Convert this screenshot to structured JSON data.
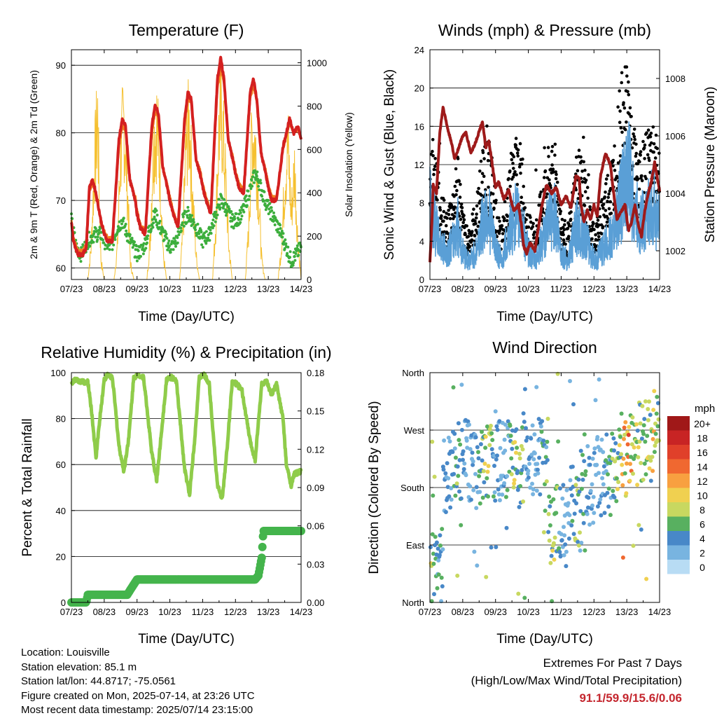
{
  "colors": {
    "temp2m": "#d42020",
    "temp9m": "#f08020",
    "dewpoint": "#3cae3c",
    "solar": "#f5c030",
    "sonic_wind": "#5a9fd6",
    "gust": "#000000",
    "pressure": "#9e1a1a",
    "rh": "#8fcc4a",
    "precip": "#44b44c",
    "extremes": "#c4262e"
  },
  "chart_data": [
    {
      "id": "temperature",
      "type": "line",
      "title": "Temperature (F)",
      "xlabel": "Time (Day/UTC)",
      "ylabel": "2m & 9m T (Red, Orange) & 2m Td (Green)",
      "y2label": "Solar Insolation (Yellow)",
      "x_ticks": [
        "07/23",
        "08/23",
        "09/23",
        "10/23",
        "11/23",
        "12/23",
        "13/23",
        "14/23"
      ],
      "xlim": [
        0,
        7
      ],
      "ylim": [
        58.3,
        92.3
      ],
      "y_ticks": [
        60,
        70,
        80,
        90
      ],
      "y2lim": [
        0,
        1060
      ],
      "y2_ticks": [
        0,
        200,
        400,
        600,
        800,
        1000
      ],
      "grid": true,
      "series": [
        {
          "key": "t2m",
          "axis": "left",
          "x": [
            0.0,
            0.06,
            0.2,
            0.35,
            0.45,
            0.55,
            0.65,
            0.75,
            0.9,
            1.0,
            1.1,
            1.25,
            1.45,
            1.55,
            1.65,
            1.78,
            1.95,
            2.0,
            2.1,
            2.25,
            2.45,
            2.55,
            2.65,
            2.78,
            2.92,
            3.0,
            3.1,
            3.25,
            3.45,
            3.55,
            3.65,
            3.8,
            3.92,
            4.0,
            4.1,
            4.25,
            4.45,
            4.55,
            4.65,
            4.78,
            4.92,
            5.0,
            5.1,
            5.25,
            5.45,
            5.55,
            5.65,
            5.78,
            5.92,
            6.0,
            6.1,
            6.25,
            6.45,
            6.55,
            6.65,
            6.78,
            6.9,
            7.0
          ],
          "values": [
            67,
            64,
            62,
            62,
            63,
            72,
            73,
            71,
            67,
            65,
            64,
            64,
            79,
            82,
            81,
            73,
            70,
            68,
            66,
            65,
            81,
            84,
            83,
            75,
            72,
            70,
            68,
            66,
            82,
            86,
            85,
            76,
            74,
            72,
            70,
            68,
            88,
            91,
            88,
            79,
            76,
            74,
            72,
            71,
            86,
            88,
            85,
            77,
            74,
            72,
            70,
            70,
            78,
            80,
            82,
            80,
            81,
            79
          ]
        },
        {
          "key": "t9m",
          "axis": "left",
          "x": [
            0.0,
            0.06,
            0.2,
            0.35,
            0.45,
            0.55,
            0.65,
            0.75,
            0.9,
            1.0,
            1.1,
            1.25,
            1.45,
            1.55,
            1.65,
            1.78,
            1.95,
            2.0,
            2.1,
            2.25,
            2.45,
            2.55,
            2.65,
            2.78,
            2.92,
            3.0,
            3.1,
            3.25,
            3.45,
            3.55,
            3.65,
            3.8,
            3.92,
            4.0,
            4.1,
            4.25,
            4.45,
            4.55,
            4.65,
            4.78,
            4.92,
            5.0,
            5.1,
            5.25,
            5.45,
            5.55,
            5.65,
            5.78,
            5.92,
            6.0,
            6.1,
            6.25,
            6.45,
            6.55,
            6.65,
            6.78,
            6.9,
            7.0
          ],
          "values": [
            67,
            64.5,
            62.5,
            62.5,
            63.5,
            71.5,
            72.5,
            71,
            67,
            65.5,
            64.5,
            64.5,
            78,
            81,
            80.5,
            73,
            70.5,
            68.5,
            66.5,
            65.5,
            80,
            83,
            82.5,
            75,
            72.5,
            70.5,
            68.5,
            66.5,
            81,
            85,
            84.5,
            76,
            74.5,
            72.5,
            70.5,
            68.5,
            86.5,
            89.5,
            87.5,
            79,
            76.5,
            74.5,
            72.5,
            71.5,
            85,
            87,
            84.5,
            77,
            74.5,
            72.5,
            70.5,
            70.5,
            77.5,
            79.5,
            81.5,
            80,
            80.5,
            79
          ]
        },
        {
          "key": "td2m",
          "axis": "left",
          "x": [
            0.0,
            0.15,
            0.3,
            0.5,
            0.7,
            0.9,
            1.0,
            1.2,
            1.4,
            1.55,
            1.7,
            1.9,
            2.0,
            2.2,
            2.4,
            2.55,
            2.7,
            2.9,
            3.0,
            3.2,
            3.4,
            3.55,
            3.7,
            3.9,
            4.0,
            4.2,
            4.4,
            4.55,
            4.7,
            4.9,
            5.0,
            5.2,
            5.4,
            5.6,
            5.7,
            5.9,
            6.0,
            6.2,
            6.4,
            6.55,
            6.7,
            6.85,
            7.0
          ],
          "values": [
            67,
            63,
            62,
            64,
            65,
            65,
            64,
            63,
            66,
            67,
            65,
            63,
            62,
            63,
            66,
            68,
            66,
            64,
            63,
            64,
            67,
            68,
            67,
            65,
            64,
            65,
            68,
            70,
            69,
            67,
            67,
            68,
            71,
            74,
            73,
            70,
            69,
            67,
            65,
            63,
            61,
            62,
            63
          ]
        },
        {
          "key": "solar",
          "axis": "right",
          "x": [
            0.0,
            0.5,
            0.6,
            0.7,
            0.8,
            0.85,
            0.9,
            1.0,
            1.1,
            1.3,
            1.4,
            1.5,
            1.6,
            1.7,
            1.8,
            1.9,
            2.0,
            2.1,
            2.3,
            2.4,
            2.5,
            2.6,
            2.7,
            2.8,
            2.9,
            3.0,
            3.1,
            3.3,
            3.4,
            3.5,
            3.6,
            3.7,
            3.8,
            3.9,
            4.0,
            4.1,
            4.3,
            4.4,
            4.5,
            4.6,
            4.7,
            4.8,
            4.9,
            5.0,
            5.1,
            5.3,
            5.4,
            5.5,
            5.6,
            5.7,
            5.8,
            5.9,
            6.0,
            6.1,
            6.3,
            6.4,
            6.5,
            6.6,
            6.7,
            6.8,
            6.9,
            7.0
          ],
          "values": [
            0,
            0,
            200,
            700,
            1020,
            500,
            120,
            0,
            0,
            0,
            200,
            800,
            1000,
            600,
            100,
            0,
            0,
            0,
            0,
            250,
            850,
            980,
            700,
            150,
            0,
            0,
            0,
            0,
            300,
            880,
            960,
            500,
            150,
            0,
            0,
            0,
            0,
            350,
            950,
            990,
            620,
            200,
            0,
            0,
            0,
            0,
            300,
            900,
            870,
            550,
            120,
            0,
            0,
            0,
            0,
            200,
            600,
            850,
            400,
            700,
            250,
            0
          ]
        }
      ]
    },
    {
      "id": "winds",
      "type": "scatter",
      "title": "Winds (mph) & Pressure (mb)",
      "xlabel": "Time (Day/UTC)",
      "ylabel": "Sonic Wind & Gust (Blue, Black)",
      "y2label": "Station Pressure (Maroon)",
      "x_ticks": [
        "07/23",
        "08/23",
        "09/23",
        "10/23",
        "11/23",
        "12/23",
        "13/23",
        "14/23"
      ],
      "xlim": [
        0,
        7
      ],
      "ylim": [
        0,
        24
      ],
      "y_ticks": [
        0,
        4,
        8,
        12,
        16,
        20,
        24
      ],
      "y2lim": [
        1001.0,
        1009.0
      ],
      "y2_ticks": [
        1002,
        1004,
        1006,
        1008
      ],
      "grid": true,
      "series": [
        {
          "key": "wind",
          "axis": "left",
          "x": [
            0.0,
            0.15,
            0.3,
            0.5,
            0.7,
            0.85,
            1.0,
            1.2,
            1.4,
            1.6,
            1.75,
            1.9,
            2.05,
            2.2,
            2.4,
            2.6,
            2.8,
            3.0,
            3.2,
            3.4,
            3.6,
            3.8,
            4.0,
            4.2,
            4.35,
            4.5,
            4.7,
            4.9,
            5.05,
            5.2,
            5.4,
            5.6,
            5.75,
            5.9,
            6.05,
            6.2,
            6.4,
            6.6,
            6.8,
            7.0
          ],
          "values": [
            8,
            6,
            4,
            3,
            4,
            6,
            3,
            2,
            3,
            6,
            8,
            5,
            3,
            2,
            5,
            7,
            6,
            3,
            2,
            4,
            6,
            7,
            3,
            2,
            4,
            6,
            5,
            3,
            2,
            3,
            4,
            5,
            8,
            10,
            12,
            8,
            6,
            7,
            8,
            6
          ]
        },
        {
          "key": "gust",
          "axis": "left",
          "x": [
            0.0,
            0.15,
            0.3,
            0.5,
            0.7,
            0.85,
            1.0,
            1.2,
            1.4,
            1.6,
            1.75,
            1.9,
            2.05,
            2.2,
            2.4,
            2.6,
            2.8,
            3.0,
            3.2,
            3.4,
            3.6,
            3.8,
            4.0,
            4.2,
            4.35,
            4.5,
            4.7,
            4.9,
            5.05,
            5.2,
            5.4,
            5.6,
            5.75,
            5.9,
            6.05,
            6.2,
            6.4,
            6.6,
            6.8,
            7.0
          ],
          "values": [
            12,
            10,
            8,
            5,
            7,
            10,
            5,
            4,
            6,
            10,
            12,
            9,
            5,
            4,
            9,
            11,
            10,
            5,
            4,
            7,
            10,
            11,
            5,
            4,
            7,
            10,
            9,
            5,
            4,
            6,
            8,
            10,
            15,
            19,
            16,
            12,
            10,
            11,
            13,
            10
          ]
        },
        {
          "key": "pressure",
          "axis": "right",
          "x": [
            0.0,
            0.06,
            0.1,
            0.2,
            0.3,
            0.4,
            0.55,
            0.65,
            0.75,
            0.85,
            1.0,
            1.1,
            1.25,
            1.4,
            1.6,
            1.7,
            1.8,
            1.9,
            2.0,
            2.1,
            2.25,
            2.4,
            2.55,
            2.7,
            2.8,
            2.85,
            2.95,
            3.05,
            3.2,
            3.4,
            3.55,
            3.7,
            3.85,
            4.0,
            4.15,
            4.3,
            4.45,
            4.55,
            4.6,
            4.7,
            4.8,
            4.9,
            5.0,
            5.1,
            5.2,
            5.35,
            5.5,
            5.6,
            5.7,
            5.8,
            5.95,
            6.05,
            6.15,
            6.25,
            6.35,
            6.45,
            6.55,
            6.65,
            6.75,
            6.85,
            6.95,
            7.0
          ],
          "values": [
            1001.6,
            1003.0,
            1004.3,
            1004.0,
            1006.1,
            1007.0,
            1006.2,
            1005.8,
            1005.2,
            1005.5,
            1006.0,
            1006.1,
            1005.4,
            1005.8,
            1006.5,
            1005.6,
            1005.8,
            1005.0,
            1004.2,
            1004.4,
            1003.8,
            1004.1,
            1003.4,
            1003.6,
            1002.8,
            1002.2,
            1001.9,
            1002.3,
            1002.0,
            1003.5,
            1004.3,
            1004.0,
            1004.2,
            1003.6,
            1003.9,
            1003.5,
            1004.6,
            1004.5,
            1003.6,
            1003.0,
            1003.4,
            1003.1,
            1003.6,
            1003.2,
            1004.6,
            1005.4,
            1005.0,
            1004.0,
            1003.1,
            1003.3,
            1003.6,
            1002.7,
            1003.0,
            1003.6,
            1002.9,
            1002.5,
            1003.4,
            1004.0,
            1004.4,
            1005.1,
            1004.4,
            1004.1
          ]
        }
      ]
    },
    {
      "id": "humidity",
      "type": "line",
      "title": "Relative Humidity (%) & Precipitation (in)",
      "xlabel": "Time (Day/UTC)",
      "ylabel": "Percent & Total Rainfall",
      "x_ticks": [
        "07/23",
        "08/23",
        "09/23",
        "10/23",
        "11/23",
        "12/23",
        "13/23",
        "14/23"
      ],
      "xlim": [
        0,
        7
      ],
      "ylim": [
        0,
        100
      ],
      "y_ticks": [
        0,
        20,
        40,
        60,
        80,
        100
      ],
      "y2lim": [
        0,
        0.18
      ],
      "y2_ticks": [
        "0.00",
        "0.03",
        "0.06",
        "0.09",
        "0.12",
        "0.15",
        "0.18"
      ],
      "grid": true,
      "series": [
        {
          "key": "rh",
          "axis": "left",
          "x": [
            0.0,
            0.1,
            0.3,
            0.5,
            0.6,
            0.75,
            0.85,
            1.0,
            1.1,
            1.25,
            1.45,
            1.6,
            1.75,
            1.9,
            2.05,
            2.2,
            2.45,
            2.6,
            2.75,
            2.9,
            3.05,
            3.2,
            3.45,
            3.6,
            3.75,
            3.9,
            4.05,
            4.2,
            4.45,
            4.6,
            4.75,
            4.9,
            5.05,
            5.2,
            5.45,
            5.6,
            5.8,
            5.95,
            6.1,
            6.25,
            6.45,
            6.55,
            6.7,
            6.8,
            7.0
          ],
          "values": [
            95,
            97,
            96,
            96,
            85,
            63,
            78,
            97,
            99,
            98,
            68,
            57,
            72,
            98,
            99,
            98,
            65,
            53,
            75,
            97,
            98,
            96,
            58,
            47,
            70,
            98,
            99,
            95,
            51,
            45,
            68,
            96,
            95,
            92,
            70,
            62,
            95,
            96,
            90,
            95,
            80,
            60,
            51,
            56,
            57
          ]
        },
        {
          "key": "precip",
          "axis": "right",
          "x": [
            0.0,
            0.45,
            0.5,
            1.0,
            1.7,
            2.0,
            5.0,
            5.6,
            5.7,
            5.8,
            5.85,
            7.0
          ],
          "values": [
            0.0,
            0.0,
            0.006,
            0.006,
            0.006,
            0.018,
            0.018,
            0.018,
            0.021,
            0.035,
            0.056,
            0.056
          ]
        }
      ]
    },
    {
      "id": "direction",
      "type": "scatter",
      "title": "Wind Direction",
      "xlabel": "Time (Day/UTC)",
      "ylabel": "Direction (Colored By Speed)",
      "x_ticks": [
        "07/23",
        "08/23",
        "09/23",
        "10/23",
        "11/23",
        "12/23",
        "13/23",
        "14/23"
      ],
      "xlim": [
        0,
        7
      ],
      "y_ticks": [
        "North",
        "East",
        "South",
        "West",
        "North"
      ],
      "ylim": [
        0,
        360
      ],
      "grid": true,
      "legend": {
        "title": "mph",
        "placement": "right",
        "labels": [
          "20+",
          "18",
          "16",
          "14",
          "12",
          "10",
          "8",
          "6",
          "4",
          "2",
          "0"
        ],
        "colors": [
          "#a01818",
          "#c82424",
          "#e0402a",
          "#f06830",
          "#f8a040",
          "#f0d050",
          "#c8d860",
          "#58b060",
          "#4888c8",
          "#78b4e0",
          "#b8dcf4"
        ]
      }
    }
  ],
  "footer": {
    "location": "Location: Louisville",
    "elevation": "Station elevation: 85.1 m",
    "latlon": "Station lat/lon: 44.8717; -75.0561",
    "created": "Figure created on Mon, 2025-07-14, at 23:26 UTC",
    "recent": "Most recent data timestamp: 2025/07/14 23:15:00",
    "extremes_title": "Extremes For Past 7 Days",
    "extremes_desc": "(High/Low/Max Wind/Total Precipitation)",
    "extremes_values": "91.1/59.9/15.6/0.06"
  }
}
